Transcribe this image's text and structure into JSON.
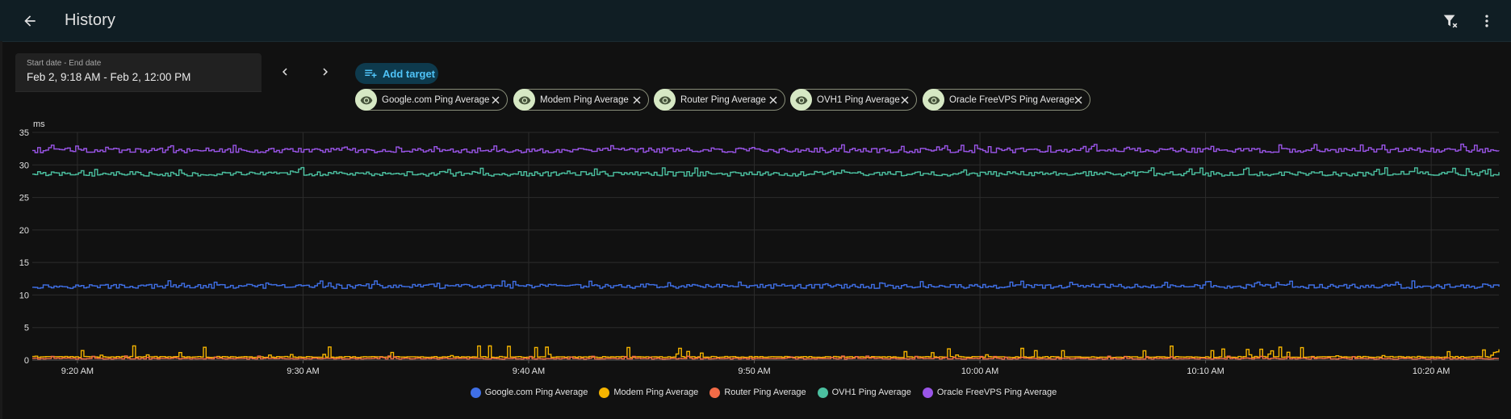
{
  "header": {
    "title": "History",
    "back_icon": "arrow-left-icon",
    "filter_icon": "filter-remove-icon",
    "menu_icon": "dots-vertical-icon"
  },
  "date_picker": {
    "label": "Start date - End date",
    "value": "Feb 2, 9:18 AM - Feb 2, 12:00 PM"
  },
  "add_target": {
    "label": "Add target",
    "icon": "playlist-plus-icon"
  },
  "targets": [
    {
      "label": "Google.com Ping Average"
    },
    {
      "label": "Modem Ping Average"
    },
    {
      "label": "Router Ping Average"
    },
    {
      "label": "OVH1 Ping Average"
    },
    {
      "label": "Oracle FreeVPS Ping Average"
    }
  ],
  "colors": {
    "google": "#3f6fe6",
    "modem": "#f5b400",
    "router": "#f26b47",
    "ovh1": "#4bc0a0",
    "oracle": "#9a55e8",
    "accent": "#4fc3f7"
  },
  "chart_data": {
    "type": "line",
    "unit": "ms",
    "ylim": [
      0,
      35
    ],
    "yticks": [
      0,
      5,
      10,
      15,
      20,
      25,
      30,
      35
    ],
    "x_range_minutes": [
      0,
      65
    ],
    "xticks": [
      {
        "minute": 2,
        "label": "9:20 AM"
      },
      {
        "minute": 12,
        "label": "9:30 AM"
      },
      {
        "minute": 22,
        "label": "9:40 AM"
      },
      {
        "minute": 32,
        "label": "9:50 AM"
      },
      {
        "minute": 42,
        "label": "10:00 AM"
      },
      {
        "minute": 52,
        "label": "10:10 AM"
      },
      {
        "minute": 62,
        "label": "10:20 AM"
      }
    ],
    "grid": true,
    "legend_position": "bottom-center",
    "series": [
      {
        "name": "Google.com Ping Average",
        "color": "#3f6fe6",
        "base": 11.3,
        "spread": 0.9
      },
      {
        "name": "Modem Ping Average",
        "color": "#f5b400",
        "base": 0.4,
        "spread": 1.8
      },
      {
        "name": "Router Ping Average",
        "color": "#f26b47",
        "base": 0.15,
        "spread": 0.5
      },
      {
        "name": "OVH1 Ping Average",
        "color": "#4bc0a0",
        "base": 28.6,
        "spread": 1.0
      },
      {
        "name": "Oracle FreeVPS Ping Average",
        "color": "#9a55e8",
        "base": 32.2,
        "spread": 1.0
      }
    ]
  }
}
